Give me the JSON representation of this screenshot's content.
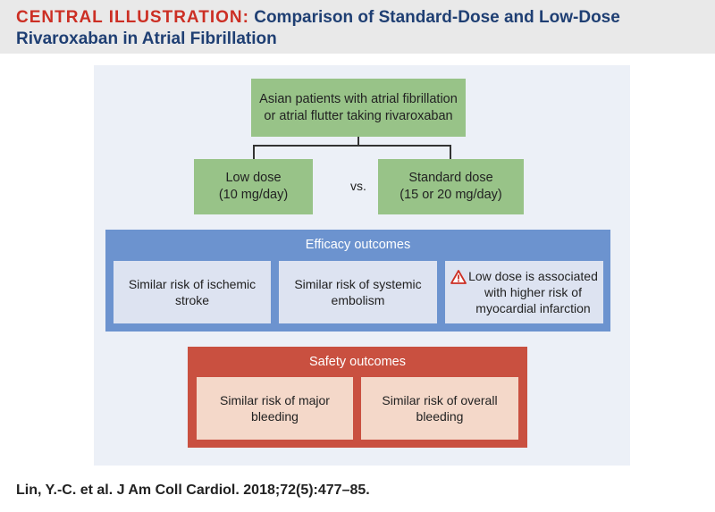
{
  "header": {
    "title_lead": "CENTRAL ILLUSTRATION:",
    "title_rest": "Comparison of Standard-Dose and Low-Dose Rivaroxaban in Atrial Fibrillation"
  },
  "population": "Asian patients with atrial fibrillation or atrial flutter taking rivaroxaban",
  "arms": {
    "low": [
      "Low dose",
      "(10 mg/day)"
    ],
    "separator": "vs.",
    "standard": [
      "Standard dose",
      "(15 or 20 mg/day)"
    ]
  },
  "efficacy": {
    "title": "Efficacy outcomes",
    "items": [
      "Similar risk of ischemic stroke",
      "Similar risk of systemic embolism",
      "Low dose is associated with higher risk of myocardial infarction"
    ],
    "warning_icon": "warning-triangle-icon"
  },
  "safety": {
    "title": "Safety outcomes",
    "items": [
      "Similar risk of major bleeding",
      "Similar risk of overall bleeding"
    ]
  },
  "citation": "Lin, Y.-C. et al. J Am Coll Cardiol. 2018;72(5):477–85.",
  "colors": {
    "title_accent": "#cc2f24",
    "title_text": "#1f3f73",
    "green": "#98c388",
    "blue": "#6c93cf",
    "blue_light": "#dde3f1",
    "red": "#c95040",
    "pink": "#f4d8c9"
  }
}
